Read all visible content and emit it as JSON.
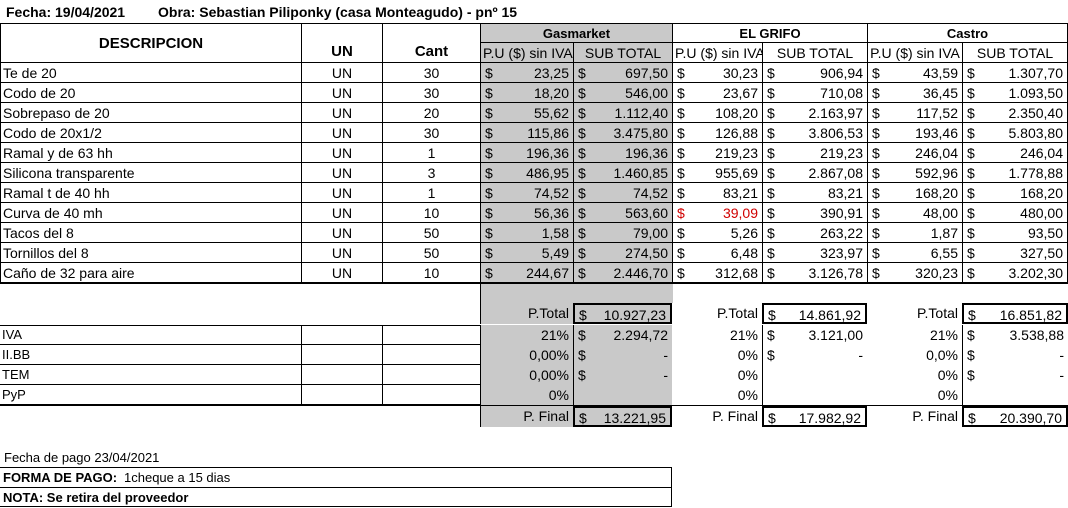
{
  "header": {
    "fecha": "Fecha: 19/04/2021",
    "obra": "Obra: Sebastian Piliponky (casa Monteagudo) - pnº 15"
  },
  "columns": {
    "descripcion": "DESCRIPCION",
    "un": "UN",
    "cant": "Cant",
    "pu": "P.U ($) sin IVA",
    "subtotal": "SUB TOTAL",
    "currency": "$"
  },
  "suppliers": [
    "Gasmarket",
    "EL GRIFO",
    "Castro"
  ],
  "items": [
    {
      "desc": "Te de 20",
      "un": "UN",
      "cant": "30",
      "gas_pu": "23,25",
      "gas_sub": "697,50",
      "grifo_pu": "30,23",
      "grifo_sub": "906,94",
      "castro_pu": "43,59",
      "castro_sub": "1.307,70"
    },
    {
      "desc": "Codo de 20",
      "un": "UN",
      "cant": "30",
      "gas_pu": "18,20",
      "gas_sub": "546,00",
      "grifo_pu": "23,67",
      "grifo_sub": "710,08",
      "castro_pu": "36,45",
      "castro_sub": "1.093,50"
    },
    {
      "desc": "Sobrepaso de 20",
      "un": "UN",
      "cant": "20",
      "gas_pu": "55,62",
      "gas_sub": "1.112,40",
      "grifo_pu": "108,20",
      "grifo_sub": "2.163,97",
      "castro_pu": "117,52",
      "castro_sub": "2.350,40"
    },
    {
      "desc": "Codo de 20x1/2",
      "un": "UN",
      "cant": "30",
      "gas_pu": "115,86",
      "gas_sub": "3.475,80",
      "grifo_pu": "126,88",
      "grifo_sub": "3.806,53",
      "castro_pu": "193,46",
      "castro_sub": "5.803,80"
    },
    {
      "desc": "Ramal y de 63 hh",
      "un": "UN",
      "cant": "1",
      "gas_pu": "196,36",
      "gas_sub": "196,36",
      "grifo_pu": "219,23",
      "grifo_sub": "219,23",
      "castro_pu": "246,04",
      "castro_sub": "246,04"
    },
    {
      "desc": "Silicona transparente",
      "un": "UN",
      "cant": "3",
      "gas_pu": "486,95",
      "gas_sub": "1.460,85",
      "grifo_pu": "955,69",
      "grifo_sub": "2.867,08",
      "castro_pu": "592,96",
      "castro_sub": "1.778,88"
    },
    {
      "desc": "Ramal t de 40 hh",
      "un": "UN",
      "cant": "1",
      "gas_pu": "74,52",
      "gas_sub": "74,52",
      "grifo_pu": "83,21",
      "grifo_sub": "83,21",
      "castro_pu": "168,20",
      "castro_sub": "168,20"
    },
    {
      "desc": "Curva de 40 mh",
      "un": "UN",
      "cant": "10",
      "gas_pu": "56,36",
      "gas_sub": "563,60",
      "grifo_pu": "39,09",
      "grifo_sub": "390,91",
      "castro_pu": "48,00",
      "castro_sub": "480,00"
    },
    {
      "desc": "Tacos del 8",
      "un": "UN",
      "cant": "50",
      "gas_pu": "1,58",
      "gas_sub": "79,00",
      "grifo_pu": "5,26",
      "grifo_sub": "263,22",
      "castro_pu": "1,87",
      "castro_sub": "93,50"
    },
    {
      "desc": "Tornillos del 8",
      "un": "UN",
      "cant": "50",
      "gas_pu": "5,49",
      "gas_sub": "274,50",
      "grifo_pu": "6,48",
      "grifo_sub": "323,97",
      "castro_pu": "6,55",
      "castro_sub": "327,50"
    },
    {
      "desc": "Caño de 32 para aire",
      "un": "UN",
      "cant": "10",
      "gas_pu": "244,67",
      "gas_sub": "2.446,70",
      "grifo_pu": "312,68",
      "grifo_sub": "3.126,78",
      "castro_pu": "320,23",
      "castro_sub": "3.202,30"
    }
  ],
  "ptotal": {
    "label": "P.Total",
    "gas": "10.927,23",
    "grifo": "14.861,92",
    "castro": "16.851,82"
  },
  "taxes": [
    {
      "label": "IVA",
      "gas_pct": "21%",
      "gas_amt": "2.294,72",
      "grifo_pct": "21%",
      "grifo_amt": "3.121,00",
      "castro_pct": "21%",
      "castro_amt": "3.538,88"
    },
    {
      "label": "II.BB",
      "gas_pct": "0,00%",
      "gas_amt": "-",
      "grifo_pct": "0%",
      "grifo_amt": "-",
      "castro_pct": "0,0%",
      "castro_amt": "-"
    },
    {
      "label": "TEM",
      "gas_pct": "0,00%",
      "gas_amt": "-",
      "grifo_pct": "0%",
      "grifo_amt": "",
      "castro_pct": "0%",
      "castro_amt": "-"
    },
    {
      "label": "PyP",
      "gas_pct": "0%",
      "gas_amt": "",
      "grifo_pct": "0%",
      "grifo_amt": "",
      "castro_pct": "0%",
      "castro_amt": ""
    }
  ],
  "pfinal": {
    "label": "P. Final",
    "gas": "13.221,95",
    "grifo": "17.982,92",
    "castro": "20.390,70"
  },
  "footer": {
    "fecha_pago": "Fecha de pago 23/04/2021",
    "forma_label": "FORMA DE PAGO:",
    "forma_value": "1cheque a 15 dias",
    "nota": "NOTA: Se retira del proveedor"
  },
  "colors": {
    "shade": "#c9c9c9",
    "highlight_red": "#d00000"
  }
}
